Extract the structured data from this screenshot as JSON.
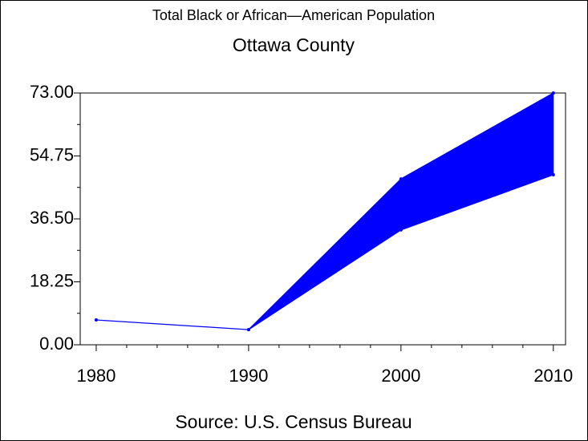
{
  "chart_data": {
    "type": "line",
    "title": "Total Black or African—American Population",
    "subtitle": "Ottawa County",
    "source": "Source: U.S. Census Bureau",
    "x": [
      1980,
      1990,
      2000,
      2010
    ],
    "series": [
      {
        "color": "#0000ff",
        "values": [
          7.2,
          4.4,
          48.1,
          73
        ]
      },
      {
        "color": "#0000ff",
        "values": [
          null,
          4.4,
          33.3,
          49.3
        ]
      }
    ],
    "fill_between": true,
    "xlim": [
      1978.95,
      2010.8
    ],
    "xticks": [
      1980,
      1990,
      2000,
      2010
    ],
    "ylim": [
      0,
      73
    ],
    "yticks": [
      {
        "value": 0,
        "label": "0.00"
      },
      {
        "value": 18.25,
        "label": "18.25"
      },
      {
        "value": 36.5,
        "label": "36.50"
      },
      {
        "value": 54.75,
        "label": "54.75"
      },
      {
        "value": 73,
        "label": "73.00"
      }
    ]
  }
}
